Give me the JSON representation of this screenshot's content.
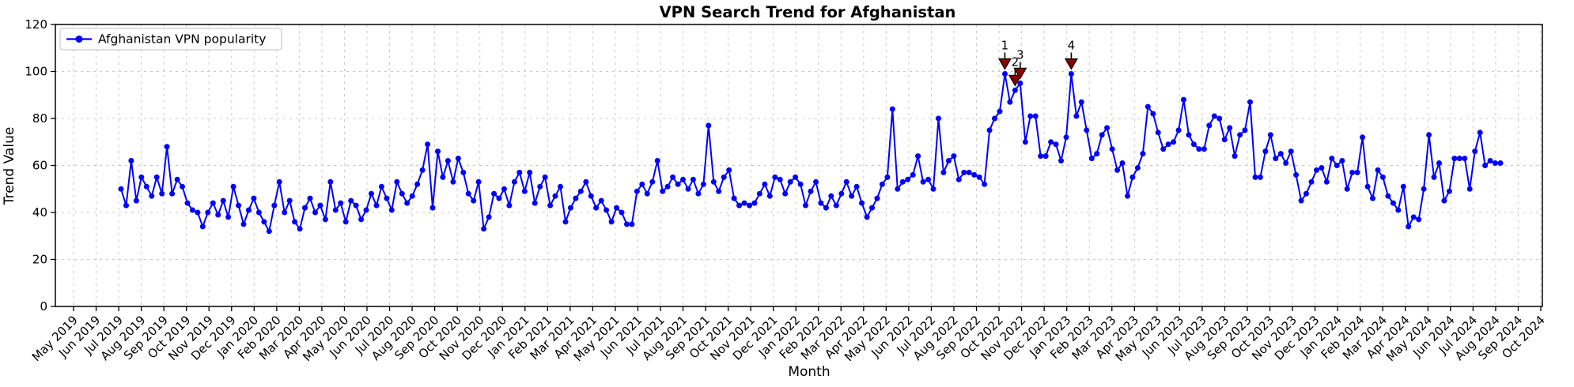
{
  "title": "VPN Search Trend for Afghanistan",
  "xlabel": "Month",
  "ylabel": "Trend Value",
  "legend": {
    "label": "Afghanistan VPN popularity",
    "position": "upper left"
  },
  "colors": {
    "line": "#0000ff",
    "marker": "#0000ff",
    "annotation": "#8b0000",
    "annotation_edge": "#000000",
    "grid": "#c9c9c9",
    "axis": "#000000",
    "background": "#ffffff"
  },
  "chart_data": {
    "type": "line",
    "title": "VPN Search Trend for Afghanistan",
    "xlabel": "Month",
    "ylabel": "Trend Value",
    "grid": true,
    "legend_position": "upper left",
    "ylim": [
      0,
      120
    ],
    "y_ticks": [
      0,
      20,
      40,
      60,
      80,
      100,
      120
    ],
    "x_tick_labels": [
      "May 2019",
      "Jun 2019",
      "Jul 2019",
      "Aug 2019",
      "Sep 2019",
      "Oct 2019",
      "Nov 2019",
      "Dec 2019",
      "Jan 2020",
      "Feb 2020",
      "Mar 2020",
      "Apr 2020",
      "May 2020",
      "Jun 2020",
      "Jul 2020",
      "Aug 2020",
      "Sep 2020",
      "Oct 2020",
      "Nov 2020",
      "Dec 2020",
      "Jan 2021",
      "Feb 2021",
      "Mar 2021",
      "Apr 2021",
      "May 2021",
      "Jun 2021",
      "Jul 2021",
      "Aug 2021",
      "Sep 2021",
      "Oct 2021",
      "Nov 2021",
      "Dec 2021",
      "Jan 2022",
      "Feb 2022",
      "Mar 2022",
      "Apr 2022",
      "May 2022",
      "Jun 2022",
      "Jul 2022",
      "Aug 2022",
      "Sep 2022",
      "Oct 2022",
      "Nov 2022",
      "Dec 2022",
      "Jan 2023",
      "Feb 2023",
      "Mar 2023",
      "Apr 2023",
      "May 2023",
      "Jun 2023",
      "Jul 2023",
      "Aug 2023",
      "Sep 2023",
      "Oct 2023",
      "Nov 2023",
      "Dec 2023",
      "Jan 2024",
      "Feb 2024",
      "Mar 2024",
      "Apr 2024",
      "May 2024",
      "Jun 2024",
      "Jul 2024",
      "Aug 2024",
      "Sep 2024",
      "Oct 2024"
    ],
    "series": [
      {
        "name": "Afghanistan VPN popularity",
        "frequency": "weekly",
        "data_start_label": "Jul 2019",
        "data_end_label": "Aug 2024",
        "values": [
          50,
          43,
          62,
          45,
          55,
          51,
          47,
          55,
          48,
          68,
          48,
          54,
          51,
          44,
          41,
          40,
          34,
          40,
          44,
          39,
          45,
          38,
          51,
          43,
          35,
          41,
          46,
          40,
          36,
          32,
          43,
          53,
          40,
          45,
          36,
          33,
          42,
          46,
          40,
          43,
          37,
          53,
          41,
          44,
          36,
          45,
          43,
          37,
          41,
          48,
          43,
          51,
          46,
          41,
          53,
          48,
          44,
          47,
          52,
          58,
          69,
          42,
          66,
          55,
          62,
          53,
          63,
          57,
          48,
          45,
          53,
          33,
          38,
          48,
          46,
          50,
          43,
          53,
          57,
          49,
          57,
          44,
          51,
          55,
          43,
          47,
          51,
          36,
          42,
          46,
          49,
          53,
          47,
          42,
          45,
          41,
          36,
          42,
          40,
          35,
          35,
          49,
          52,
          48,
          53,
          62,
          49,
          51,
          55,
          52,
          54,
          50,
          54,
          48,
          52,
          77,
          53,
          49,
          55,
          58,
          46,
          43,
          44,
          43,
          44,
          48,
          52,
          47,
          55,
          54,
          48,
          53,
          55,
          52,
          43,
          49,
          53,
          44,
          42,
          47,
          43,
          48,
          53,
          47,
          51,
          44,
          38,
          42,
          46,
          52,
          55,
          84,
          50,
          53,
          54,
          56,
          64,
          53,
          54,
          50,
          80,
          57,
          62,
          64,
          54,
          57,
          57,
          56,
          55,
          52,
          75,
          80,
          83,
          99,
          87,
          92,
          95,
          70,
          81,
          81,
          64,
          64,
          70,
          69,
          62,
          72,
          99,
          81,
          87,
          75,
          63,
          65,
          73,
          76,
          67,
          58,
          61,
          47,
          55,
          59,
          65,
          85,
          82,
          74,
          67,
          69,
          70,
          75,
          88,
          73,
          69,
          67,
          67,
          77,
          81,
          80,
          71,
          76,
          64,
          73,
          75,
          87,
          55,
          55,
          66,
          73,
          63,
          65,
          61,
          66,
          56,
          45,
          48,
          53,
          58,
          59,
          53,
          63,
          60,
          62,
          50,
          57,
          57,
          72,
          51,
          46,
          58,
          55,
          47,
          44,
          41,
          51,
          34,
          38,
          37,
          50,
          73,
          55,
          61,
          45,
          49,
          63,
          63,
          63,
          50,
          66,
          74,
          60,
          62,
          61,
          61
        ]
      }
    ],
    "annotations": [
      {
        "label": "1",
        "point_index": 173,
        "value": 99
      },
      {
        "label": "2",
        "point_index": 175,
        "value": 92
      },
      {
        "label": "3",
        "point_index": 176,
        "value": 95
      },
      {
        "label": "4",
        "point_index": 186,
        "value": 99
      }
    ]
  }
}
